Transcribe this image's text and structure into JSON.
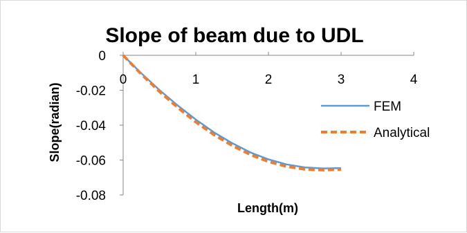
{
  "chart_data": {
    "type": "line",
    "title": "Slope of beam due to UDL",
    "xlabel": "Length(m)",
    "ylabel": "Slope(radian)",
    "xlim": [
      0,
      4
    ],
    "ylim": [
      -0.08,
      0
    ],
    "x_ticks": [
      "0",
      "1",
      "2",
      "3",
      "4"
    ],
    "y_ticks": [
      "0",
      "-0.02",
      "-0.04",
      "-0.06",
      "-0.08"
    ],
    "grid": false,
    "legend_position": "right",
    "series": [
      {
        "name": "FEM",
        "color": "#5b9bd5",
        "style": "solid",
        "x": [
          0,
          0.25,
          0.5,
          0.75,
          1.0,
          1.25,
          1.5,
          1.75,
          2.0,
          2.25,
          2.5,
          2.75,
          3.0
        ],
        "y": [
          0,
          -0.0103,
          -0.0199,
          -0.0287,
          -0.0368,
          -0.0441,
          -0.0503,
          -0.0556,
          -0.0596,
          -0.0625,
          -0.0642,
          -0.0648,
          -0.0646
        ]
      },
      {
        "name": "Analytical",
        "color": "#ed7d31",
        "style": "dashed",
        "x": [
          0,
          0.25,
          0.5,
          0.75,
          1.0,
          1.25,
          1.5,
          1.75,
          2.0,
          2.25,
          2.5,
          2.75,
          3.0
        ],
        "y": [
          0,
          -0.0108,
          -0.0208,
          -0.0299,
          -0.0382,
          -0.0455,
          -0.0517,
          -0.0569,
          -0.0609,
          -0.0637,
          -0.0653,
          -0.0657,
          -0.0654
        ]
      }
    ]
  }
}
